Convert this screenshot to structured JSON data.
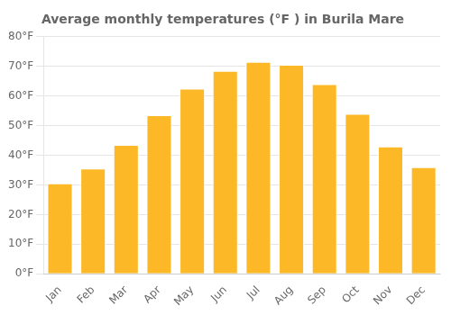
{
  "chart_data": {
    "type": "bar",
    "title": "Average monthly temperatures (°F ) in Burila Mare",
    "categories": [
      "Jan",
      "Feb",
      "Mar",
      "Apr",
      "May",
      "Jun",
      "Jul",
      "Aug",
      "Sep",
      "Oct",
      "Nov",
      "Dec"
    ],
    "values": [
      30.5,
      35.5,
      43.5,
      53.5,
      62.5,
      68.5,
      71.5,
      70.5,
      64.0,
      54.0,
      43.0,
      36.0
    ],
    "color": "#FDB827",
    "ylim": [
      0,
      80
    ],
    "yticks": [
      {
        "value": 0,
        "label": "0°F"
      },
      {
        "value": 10,
        "label": "10°F"
      },
      {
        "value": 20,
        "label": "20°F"
      },
      {
        "value": 30,
        "label": "30°F"
      },
      {
        "value": 40,
        "label": "40°F"
      },
      {
        "value": 50,
        "label": "50°F"
      },
      {
        "value": 60,
        "label": "60°F"
      },
      {
        "value": 70,
        "label": "70°F"
      },
      {
        "value": 80,
        "label": "80°F"
      }
    ],
    "grid": true
  }
}
